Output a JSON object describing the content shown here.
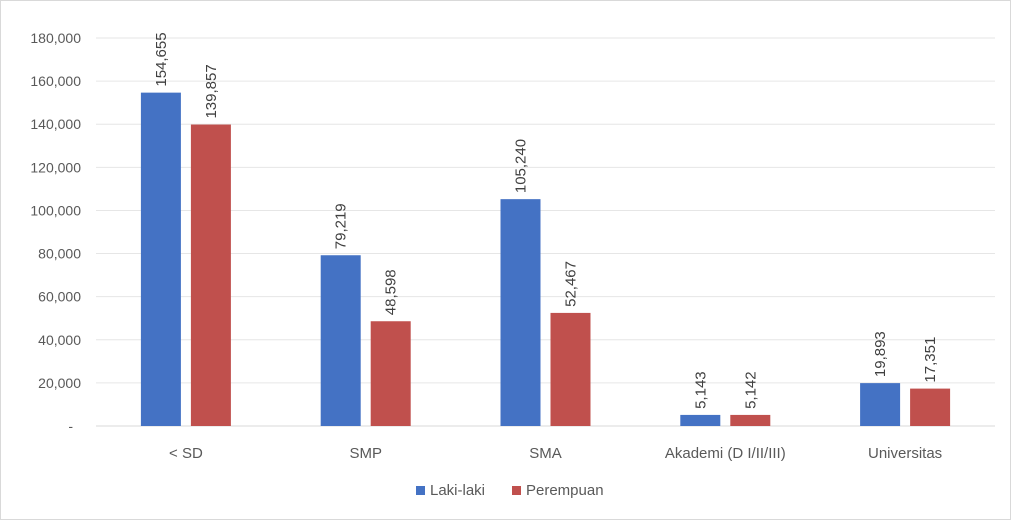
{
  "chart_data": {
    "type": "bar",
    "categories": [
      "< SD",
      "SMP",
      "SMA",
      "Akademi (D I/II/III)",
      "Universitas"
    ],
    "series": [
      {
        "name": "Laki-laki",
        "color": "#4472c4",
        "values": [
          154655,
          79219,
          105240,
          5143,
          19893
        ],
        "labels": [
          "154,655",
          "79,219",
          "105,240",
          "5,143",
          "19,893"
        ]
      },
      {
        "name": "Perempuan",
        "color": "#c0504d",
        "values": [
          139857,
          48598,
          52467,
          5142,
          17351
        ],
        "labels": [
          "139,857",
          "48,598",
          "52,467",
          "5,142",
          "17,351"
        ]
      }
    ],
    "ylim": [
      0,
      180000
    ],
    "yticks": [
      0,
      20000,
      40000,
      60000,
      80000,
      100000,
      120000,
      140000,
      160000,
      180000
    ],
    "ytick_labels": [
      "-",
      "20,000",
      "40,000",
      "60,000",
      "80,000",
      "100,000",
      "120,000",
      "140,000",
      "160,000",
      "180,000"
    ],
    "grid": true,
    "legend_position": "bottom"
  }
}
